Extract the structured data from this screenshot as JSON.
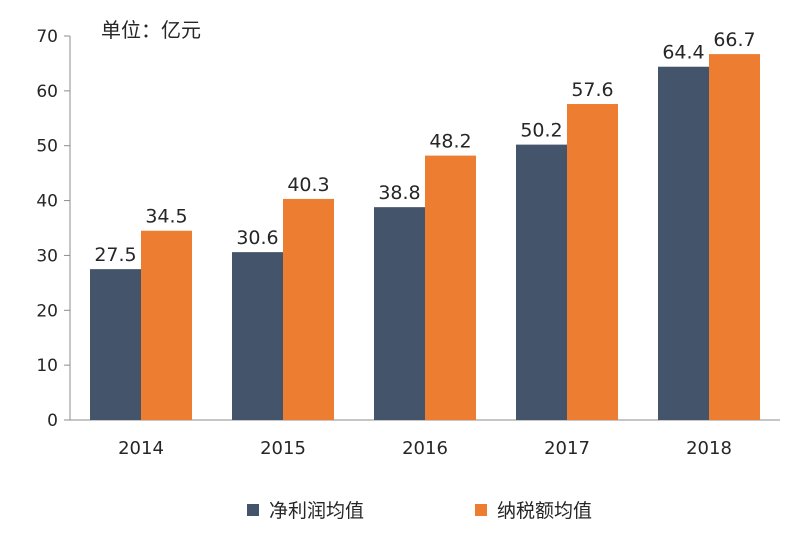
{
  "unit_label": "单位：亿元",
  "chart_data": {
    "type": "bar",
    "categories": [
      "2014",
      "2015",
      "2016",
      "2017",
      "2018"
    ],
    "series": [
      {
        "name": "净利润均值",
        "color": "#44546a",
        "values": [
          27.5,
          30.6,
          38.8,
          50.2,
          64.4
        ]
      },
      {
        "name": "纳税额均值",
        "color": "#ed7d31",
        "values": [
          34.5,
          40.3,
          48.2,
          57.6,
          66.7
        ]
      }
    ],
    "value_labels": [
      [
        "27.5",
        "30.6",
        "38.8",
        "50.2",
        "64.4"
      ],
      [
        "34.5",
        "40.3",
        "48.2",
        "57.6",
        "66.7"
      ]
    ],
    "y_ticks": [
      "0",
      "10",
      "20",
      "30",
      "40",
      "50",
      "60",
      "70"
    ],
    "ylim": [
      0,
      70
    ],
    "grid": false,
    "legend_position": "bottom"
  }
}
